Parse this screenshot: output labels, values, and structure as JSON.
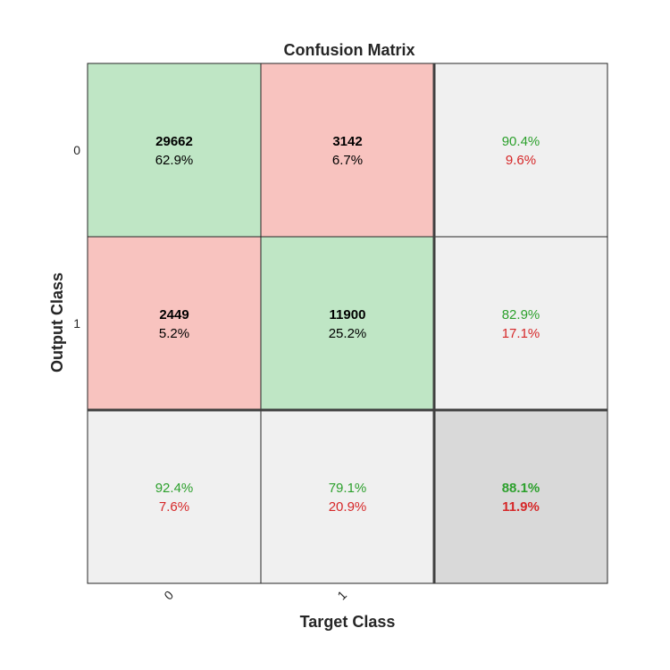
{
  "chart_data": {
    "type": "heatmap",
    "title": "Confusion Matrix",
    "xlabel": "Target Class",
    "ylabel": "Output Class",
    "classes": [
      "0",
      "1"
    ],
    "cells": [
      [
        {
          "count": "29662",
          "percent": "62.9%"
        },
        {
          "count": "3142",
          "percent": "6.7%"
        }
      ],
      [
        {
          "count": "2449",
          "percent": "5.2%"
        },
        {
          "count": "11900",
          "percent": "25.2%"
        }
      ]
    ],
    "row_summary": [
      {
        "correct": "90.4%",
        "incorrect": "9.6%"
      },
      {
        "correct": "82.9%",
        "incorrect": "17.1%"
      }
    ],
    "col_summary": [
      {
        "correct": "92.4%",
        "incorrect": "7.6%"
      },
      {
        "correct": "79.1%",
        "incorrect": "20.9%"
      }
    ],
    "overall": {
      "correct": "88.1%",
      "incorrect": "11.9%"
    },
    "colors": {
      "correct_cell": "#bfe6c5",
      "incorrect_cell": "#f8c3bf",
      "summary_cell": "#f0f0f0",
      "overall_cell": "#d9d9d9",
      "correct_text": "#2ca02c",
      "incorrect_text": "#d62728"
    }
  }
}
